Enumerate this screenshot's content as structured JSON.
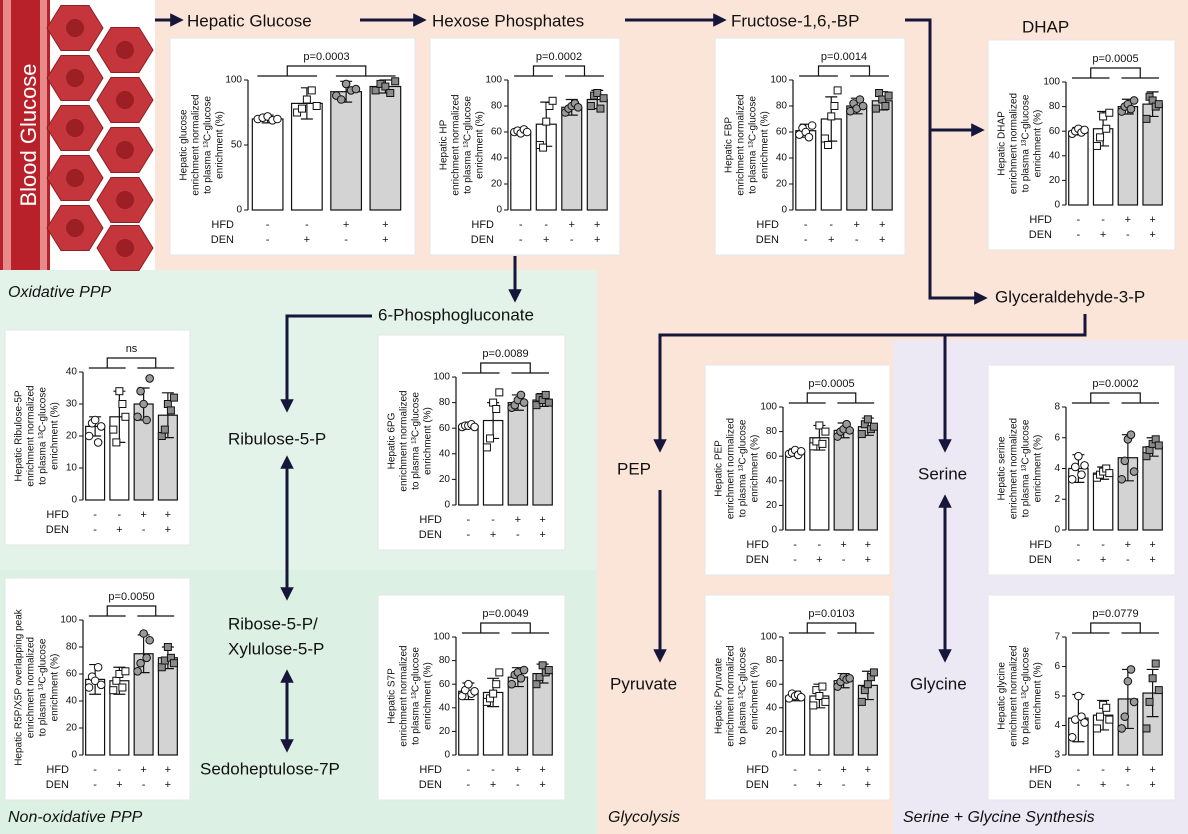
{
  "diagram": {
    "blood": "Blood Glucose",
    "nodes": [
      "Hepatic Glucose",
      "Hexose Phosphates",
      "Fructose-1,6,-BP",
      "DHAP",
      "Glyceraldehyde-3-P",
      "6-Phosphogluconate",
      "Ribulose-5-P",
      "Ribose-5-P/",
      "Xylulose-5-P",
      "Sedoheptulose-7P",
      "PEP",
      "Pyruvate",
      "Serine",
      "Glycine"
    ],
    "regions": [
      "Oxidative PPP",
      "Non-oxidative PPP",
      "Glycolysis",
      "Serine + Glycine Synthesis"
    ]
  },
  "chart_data": [
    {
      "type": "bar",
      "ylabel": [
        "Hepatic glucose",
        "enrichment normalized",
        "to plasma ¹³C-glucose",
        "enrichment (%)"
      ],
      "row_labels": [
        "HFD",
        "DEN"
      ],
      "rows": [
        [
          "-",
          "-",
          "+",
          "+"
        ],
        [
          "-",
          "+",
          "-",
          "+"
        ]
      ],
      "values": [
        70,
        82,
        91,
        95
      ],
      "errors": [
        3,
        12,
        8,
        5
      ],
      "points": [
        [
          70,
          71,
          72,
          69,
          70
        ],
        [
          75,
          78,
          85,
          92,
          80
        ],
        [
          88,
          85,
          97,
          92,
          93
        ],
        [
          92,
          97,
          95,
          90,
          99
        ]
      ],
      "annotation": "p=0.0003",
      "ylim": [
        0,
        100
      ],
      "yticks": [
        0,
        50,
        100
      ],
      "colors": [
        "#ffffff",
        "#ffffff",
        "#d3d3d3",
        "#d3d3d3"
      ],
      "markers": [
        "circle",
        "square",
        "circle",
        "square"
      ],
      "marker_colors": [
        "#ffffff",
        "#ffffff",
        "#9a9a9a",
        "#8a8a8a"
      ]
    },
    {
      "type": "bar",
      "ylabel": [
        "Hepatic HP",
        "enrichment normalized",
        "to plasma ¹³C-glucose",
        "enrichment (%)"
      ],
      "row_labels": [
        "HFD",
        "DEN"
      ],
      "rows": [
        [
          "-",
          "-",
          "+",
          "+"
        ],
        [
          "-",
          "+",
          "-",
          "+"
        ]
      ],
      "values": [
        60,
        66,
        79,
        85
      ],
      "errors": [
        2,
        17,
        6,
        7
      ],
      "points": [
        [
          60,
          61,
          59,
          62,
          60
        ],
        [
          50,
          48,
          68,
          80,
          84
        ],
        [
          75,
          78,
          80,
          82,
          79
        ],
        [
          80,
          88,
          90,
          78,
          86
        ]
      ],
      "annotation": "p=0.0002",
      "ylim": [
        0,
        100
      ],
      "yticks": [
        0,
        20,
        40,
        60,
        80,
        100
      ],
      "colors": [
        "#ffffff",
        "#ffffff",
        "#d3d3d3",
        "#d3d3d3"
      ],
      "markers": [
        "circle",
        "square",
        "circle",
        "square"
      ],
      "marker_colors": [
        "#ffffff",
        "#ffffff",
        "#9a9a9a",
        "#8a8a8a"
      ]
    },
    {
      "type": "bar",
      "ylabel": [
        "Hepatic FBP",
        "enrichment normalized",
        "to plasma ¹³C-glucose",
        "enrichment (%)"
      ],
      "row_labels": [
        "HFD",
        "DEN"
      ],
      "rows": [
        [
          "-",
          "-",
          "+",
          "+"
        ],
        [
          "-",
          "+",
          "-",
          "+"
        ]
      ],
      "values": [
        61,
        70,
        80,
        84
      ],
      "errors": [
        5,
        17,
        6,
        7
      ],
      "points": [
        [
          58,
          63,
          60,
          56,
          65
        ],
        [
          55,
          50,
          72,
          80,
          92
        ],
        [
          76,
          82,
          78,
          85,
          80
        ],
        [
          78,
          90,
          85,
          80,
          88
        ]
      ],
      "annotation": "p=0.0014",
      "ylim": [
        0,
        100
      ],
      "yticks": [
        0,
        20,
        40,
        60,
        80,
        100
      ],
      "colors": [
        "#ffffff",
        "#ffffff",
        "#d3d3d3",
        "#d3d3d3"
      ],
      "markers": [
        "circle",
        "square",
        "circle",
        "square"
      ],
      "marker_colors": [
        "#ffffff",
        "#ffffff",
        "#9a9a9a",
        "#8a8a8a"
      ]
    },
    {
      "type": "bar",
      "ylabel": [
        "Hepatic DHAP",
        "enrichment normalized",
        "to plasma ¹³C-glucose",
        "enrichment (%)"
      ],
      "row_labels": [
        "HFD",
        "DEN"
      ],
      "rows": [
        [
          "-",
          "-",
          "+",
          "+"
        ],
        [
          "-",
          "+",
          "-",
          "+"
        ]
      ],
      "values": [
        60,
        62,
        80,
        82
      ],
      "errors": [
        3,
        14,
        6,
        10
      ],
      "points": [
        [
          58,
          60,
          62,
          59,
          61
        ],
        [
          48,
          55,
          72,
          62,
          75
        ],
        [
          76,
          80,
          82,
          78,
          85
        ],
        [
          70,
          88,
          85,
          80,
          82
        ]
      ],
      "annotation": "p=0.0005",
      "ylim": [
        0,
        100
      ],
      "yticks": [
        0,
        20,
        40,
        60,
        80,
        100
      ],
      "colors": [
        "#ffffff",
        "#ffffff",
        "#d3d3d3",
        "#d3d3d3"
      ],
      "markers": [
        "circle",
        "square",
        "circle",
        "square"
      ],
      "marker_colors": [
        "#ffffff",
        "#ffffff",
        "#9a9a9a",
        "#8a8a8a"
      ]
    },
    {
      "type": "bar",
      "ylabel": [
        "Hepatic Ribulose-5P",
        "enrichment normalized",
        "to plasma ¹³C-glucose",
        "enrichment (%)"
      ],
      "row_labels": [
        "HFD",
        "DEN"
      ],
      "rows": [
        [
          "-",
          "-",
          "+",
          "+"
        ],
        [
          "-",
          "+",
          "-",
          "+"
        ]
      ],
      "values": [
        23,
        26,
        30,
        26.5
      ],
      "errors": [
        3,
        8,
        5,
        7
      ],
      "points": [
        [
          20,
          24,
          25,
          18,
          23
        ],
        [
          22,
          18,
          34,
          30,
          26
        ],
        [
          26,
          34,
          30,
          25,
          38
        ],
        [
          20,
          22,
          30,
          28,
          32
        ]
      ],
      "annotation": "ns",
      "ylim": [
        0,
        40
      ],
      "yticks": [
        0,
        10,
        20,
        30,
        40
      ],
      "colors": [
        "#ffffff",
        "#ffffff",
        "#d3d3d3",
        "#d3d3d3"
      ],
      "markers": [
        "circle",
        "square",
        "circle",
        "square"
      ],
      "marker_colors": [
        "#ffffff",
        "#ffffff",
        "#9a9a9a",
        "#8a8a8a"
      ]
    },
    {
      "type": "bar",
      "ylabel": [
        "Hepatic 6PG",
        "enrichment normalized",
        "to plasma ¹³C-glucose",
        "enrichment (%)"
      ],
      "row_labels": [
        "HFD",
        "DEN"
      ],
      "rows": [
        [
          "-",
          "-",
          "+",
          "+"
        ],
        [
          "-",
          "+",
          "-",
          "+"
        ]
      ],
      "values": [
        62,
        66,
        80,
        82
      ],
      "errors": [
        1,
        14,
        6,
        5
      ],
      "points": [
        [
          61,
          62,
          62,
          63,
          61
        ],
        [
          45,
          52,
          80,
          75,
          88
        ],
        [
          76,
          78,
          82,
          86,
          80
        ],
        [
          78,
          84,
          82,
          86,
          80
        ]
      ],
      "annotation": "p=0.0089",
      "ylim": [
        0,
        100
      ],
      "yticks": [
        0,
        20,
        40,
        60,
        80,
        100
      ],
      "colors": [
        "#ffffff",
        "#ffffff",
        "#d3d3d3",
        "#d3d3d3"
      ],
      "markers": [
        "circle",
        "square",
        "circle",
        "square"
      ],
      "marker_colors": [
        "#ffffff",
        "#ffffff",
        "#9a9a9a",
        "#8a8a8a"
      ]
    },
    {
      "type": "bar",
      "ylabel": [
        "Hepatic R5P/X5P overlapping peak",
        "enrichment normalized",
        "to plasma ¹³C-glucose",
        "enrichment (%)"
      ],
      "row_labels": [
        "HFD",
        "DEN"
      ],
      "rows": [
        [
          "-",
          "-",
          "+",
          "+"
        ],
        [
          "-",
          "+",
          "-",
          "+"
        ]
      ],
      "values": [
        56,
        55,
        75,
        72
      ],
      "errors": [
        11,
        10,
        14,
        8
      ],
      "points": [
        [
          50,
          58,
          55,
          65,
          52
        ],
        [
          48,
          55,
          60,
          50,
          62
        ],
        [
          62,
          68,
          90,
          72,
          85
        ],
        [
          65,
          70,
          80,
          72,
          68
        ]
      ],
      "annotation": "p=0.0050",
      "ylim": [
        0,
        100
      ],
      "yticks": [
        0,
        20,
        40,
        60,
        80,
        100
      ],
      "colors": [
        "#ffffff",
        "#ffffff",
        "#d3d3d3",
        "#d3d3d3"
      ],
      "markers": [
        "circle",
        "square",
        "circle",
        "square"
      ],
      "marker_colors": [
        "#ffffff",
        "#ffffff",
        "#9a9a9a",
        "#8a8a8a"
      ]
    },
    {
      "type": "bar",
      "ylabel": [
        "Hepatic S7P",
        "enrichment normalized",
        "to plasma ¹³C-glucose",
        "enrichment (%)"
      ],
      "row_labels": [
        "HFD",
        "DEN"
      ],
      "rows": [
        [
          "-",
          "-",
          "+",
          "+"
        ],
        [
          "-",
          "+",
          "-",
          "+"
        ]
      ],
      "values": [
        54,
        53,
        66,
        69
      ],
      "errors": [
        7,
        12,
        8,
        8
      ],
      "points": [
        [
          50,
          55,
          60,
          52,
          54
        ],
        [
          45,
          48,
          52,
          60,
          70
        ],
        [
          60,
          68,
          70,
          65,
          72
        ],
        [
          60,
          66,
          76,
          70,
          72
        ]
      ],
      "annotation": "p=0.0049",
      "ylim": [
        0,
        100
      ],
      "yticks": [
        0,
        20,
        40,
        60,
        80,
        100
      ],
      "colors": [
        "#ffffff",
        "#ffffff",
        "#d3d3d3",
        "#d3d3d3"
      ],
      "markers": [
        "circle",
        "square",
        "circle",
        "square"
      ],
      "marker_colors": [
        "#ffffff",
        "#ffffff",
        "#9a9a9a",
        "#8a8a8a"
      ]
    },
    {
      "type": "bar",
      "ylabel": [
        "Hepatic PEP",
        "enrichment normalized",
        "to plasma ¹³C-glucose",
        "enrichment (%)"
      ],
      "row_labels": [
        "HFD",
        "DEN"
      ],
      "rows": [
        [
          "-",
          "-",
          "+",
          "+"
        ],
        [
          "-",
          "+",
          "-",
          "+"
        ]
      ],
      "values": [
        63,
        75,
        81,
        84
      ],
      "errors": [
        3,
        10,
        6,
        7
      ],
      "points": [
        [
          62,
          63,
          65,
          61,
          64
        ],
        [
          68,
          72,
          85,
          70,
          80
        ],
        [
          76,
          80,
          82,
          86,
          81
        ],
        [
          78,
          86,
          90,
          82,
          84
        ]
      ],
      "annotation": "p=0.0005",
      "ylim": [
        0,
        100
      ],
      "yticks": [
        0,
        20,
        40,
        60,
        80,
        100
      ],
      "colors": [
        "#ffffff",
        "#ffffff",
        "#d3d3d3",
        "#d3d3d3"
      ],
      "markers": [
        "circle",
        "square",
        "circle",
        "square"
      ],
      "marker_colors": [
        "#ffffff",
        "#ffffff",
        "#9a9a9a",
        "#8a8a8a"
      ]
    },
    {
      "type": "bar",
      "ylabel": [
        "Hepatic Pyruvate",
        "enrichment normalized",
        "to plasma ¹³C-glucose",
        "enrichment (%)"
      ],
      "row_labels": [
        "HFD",
        "DEN"
      ],
      "rows": [
        [
          "-",
          "-",
          "+",
          "+"
        ],
        [
          "-",
          "+",
          "-",
          "+"
        ]
      ],
      "values": [
        50,
        50,
        63,
        59
      ],
      "errors": [
        4,
        10,
        6,
        12
      ],
      "points": [
        [
          48,
          52,
          50,
          51,
          49
        ],
        [
          42,
          55,
          50,
          58,
          45
        ],
        [
          58,
          62,
          66,
          64,
          65
        ],
        [
          45,
          55,
          60,
          66,
          70
        ]
      ],
      "annotation": "p=0.0103",
      "ylim": [
        0,
        100
      ],
      "yticks": [
        0,
        20,
        40,
        60,
        80,
        100
      ],
      "colors": [
        "#ffffff",
        "#ffffff",
        "#d3d3d3",
        "#d3d3d3"
      ],
      "markers": [
        "circle",
        "square",
        "circle",
        "square"
      ],
      "marker_colors": [
        "#ffffff",
        "#ffffff",
        "#9a9a9a",
        "#8a8a8a"
      ]
    },
    {
      "type": "bar",
      "ylabel": [
        "Hepatic serine",
        "enrichment normalized",
        "to plasma ¹³C-glucose",
        "enrichment (%)"
      ],
      "row_labels": [
        "HFD",
        "DEN"
      ],
      "rows": [
        [
          "-",
          "-",
          "+",
          "+"
        ],
        [
          "-",
          "+",
          "-",
          "+"
        ]
      ],
      "values": [
        4.0,
        3.7,
        4.7,
        5.4
      ],
      "errors": [
        0.9,
        0.4,
        1.5,
        0.6
      ],
      "points": [
        [
          3.3,
          4.1,
          4.8,
          3.6,
          4.2
        ],
        [
          3.4,
          3.6,
          3.8,
          4.0,
          3.7
        ],
        [
          3.3,
          4.5,
          5.9,
          6.2,
          3.8
        ],
        [
          4.8,
          5.2,
          5.6,
          5.9,
          5.5
        ]
      ],
      "annotation": "p=0.0002",
      "ylim": [
        0,
        8
      ],
      "yticks": [
        0,
        2,
        4,
        6,
        8
      ],
      "colors": [
        "#ffffff",
        "#ffffff",
        "#d3d3d3",
        "#d3d3d3"
      ],
      "markers": [
        "circle",
        "square",
        "circle",
        "square"
      ],
      "marker_colors": [
        "#ffffff",
        "#ffffff",
        "#9a9a9a",
        "#8a8a8a"
      ]
    },
    {
      "type": "bar",
      "ylabel": [
        "Hepatic glycine",
        "enrichment normalized",
        "to plasma ¹³C-glucose",
        "enrichment (%)"
      ],
      "row_labels": [
        "HFD",
        "DEN"
      ],
      "rows": [
        [
          "-",
          "-",
          "+",
          "+"
        ],
        [
          "-",
          "+",
          "-",
          "+"
        ]
      ],
      "values": [
        4.25,
        4.35,
        4.9,
        5.1
      ],
      "errors": [
        0.8,
        0.5,
        1.0,
        0.8
      ],
      "points": [
        [
          3.6,
          4.2,
          5.0,
          4.3,
          4.1
        ],
        [
          3.9,
          4.3,
          4.7,
          4.6,
          4.2
        ],
        [
          3.9,
          4.3,
          5.5,
          5.9,
          4.8
        ],
        [
          3.9,
          4.8,
          5.6,
          6.1,
          5.2
        ]
      ],
      "annotation": "p=0.0779",
      "ylim": [
        3,
        7
      ],
      "yticks": [
        3,
        4,
        5,
        6,
        7
      ],
      "colors": [
        "#ffffff",
        "#ffffff",
        "#d3d3d3",
        "#d3d3d3"
      ],
      "markers": [
        "circle",
        "square",
        "circle",
        "square"
      ],
      "marker_colors": [
        "#ffffff",
        "#ffffff",
        "#9a9a9a",
        "#8a8a8a"
      ]
    }
  ]
}
